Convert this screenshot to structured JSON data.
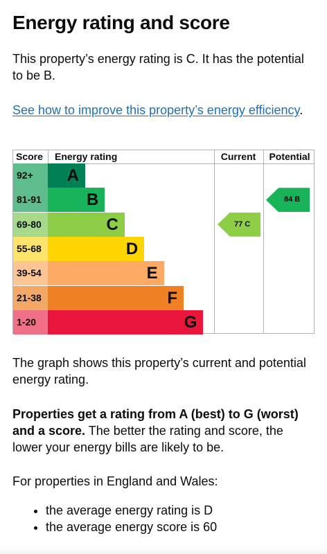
{
  "heading": "Energy rating and score",
  "intro": "This property’s energy rating is C. It has the potential to be B.",
  "improve_link": "See how to improve this property’s energy efficiency",
  "improve_link_suffix": ".",
  "epc": {
    "headers": {
      "score": "Score",
      "rating": "Energy rating",
      "current": "Current",
      "potential": "Potential"
    },
    "bands": [
      {
        "score": "92+",
        "letter": "A",
        "color": "#008054",
        "score_bg": "#5fbc8c"
      },
      {
        "score": "81-91",
        "letter": "B",
        "color": "#19b459",
        "score_bg": "#5fbc8c"
      },
      {
        "score": "69-80",
        "letter": "C",
        "color": "#8dce46",
        "score_bg": "#a6d98a"
      },
      {
        "score": "55-68",
        "letter": "D",
        "color": "#ffd500",
        "score_bg": "#ffe46b"
      },
      {
        "score": "39-54",
        "letter": "E",
        "color": "#fcaa65",
        "score_bg": "#fcc593"
      },
      {
        "score": "21-38",
        "letter": "F",
        "color": "#ef8023",
        "score_bg": "#f4a866"
      },
      {
        "score": "1-20",
        "letter": "G",
        "color": "#e9153b",
        "score_bg": "#f07088"
      }
    ],
    "current": {
      "label": "77 C",
      "band": "C",
      "color": "#8dce46"
    },
    "potential": {
      "label": "84 B",
      "band": "B",
      "color": "#19b459"
    }
  },
  "graph_text": "The graph shows this property’s current and potential energy rating.",
  "rating_explanation_bold": "Properties get a rating from A (best) to G (worst) and a score.",
  "rating_explanation_rest": " The better the rating and score, the lower your energy bills are likely to be.",
  "region_text": "For properties in England and Wales:",
  "averages": [
    "the average energy rating is D",
    "the average energy score is 60"
  ]
}
